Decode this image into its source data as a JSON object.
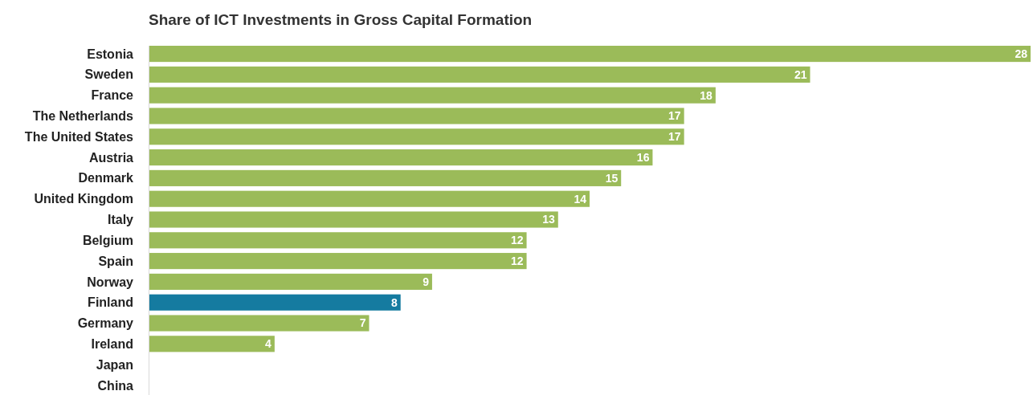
{
  "chart_data": {
    "type": "bar",
    "orientation": "horizontal",
    "title": "Share of ICT Investments in Gross Capital Formation",
    "categories": [
      "Estonia",
      "Sweden",
      "France",
      "The Netherlands",
      "The United States",
      "Austria",
      "Denmark",
      "United Kingdom",
      "Italy",
      "Belgium",
      "Spain",
      "Norway",
      "Finland",
      "Germany",
      "Ireland",
      "Japan",
      "China"
    ],
    "values": [
      28,
      21,
      18,
      17,
      17,
      16,
      15,
      14,
      13,
      12,
      12,
      9,
      8,
      7,
      4,
      null,
      null
    ],
    "colors": [
      "#9bbb59",
      "#9bbb59",
      "#9bbb59",
      "#9bbb59",
      "#9bbb59",
      "#9bbb59",
      "#9bbb59",
      "#9bbb59",
      "#9bbb59",
      "#9bbb59",
      "#9bbb59",
      "#9bbb59",
      "#157ba0",
      "#9bbb59",
      "#9bbb59",
      null,
      null
    ],
    "data_labels": true
  }
}
